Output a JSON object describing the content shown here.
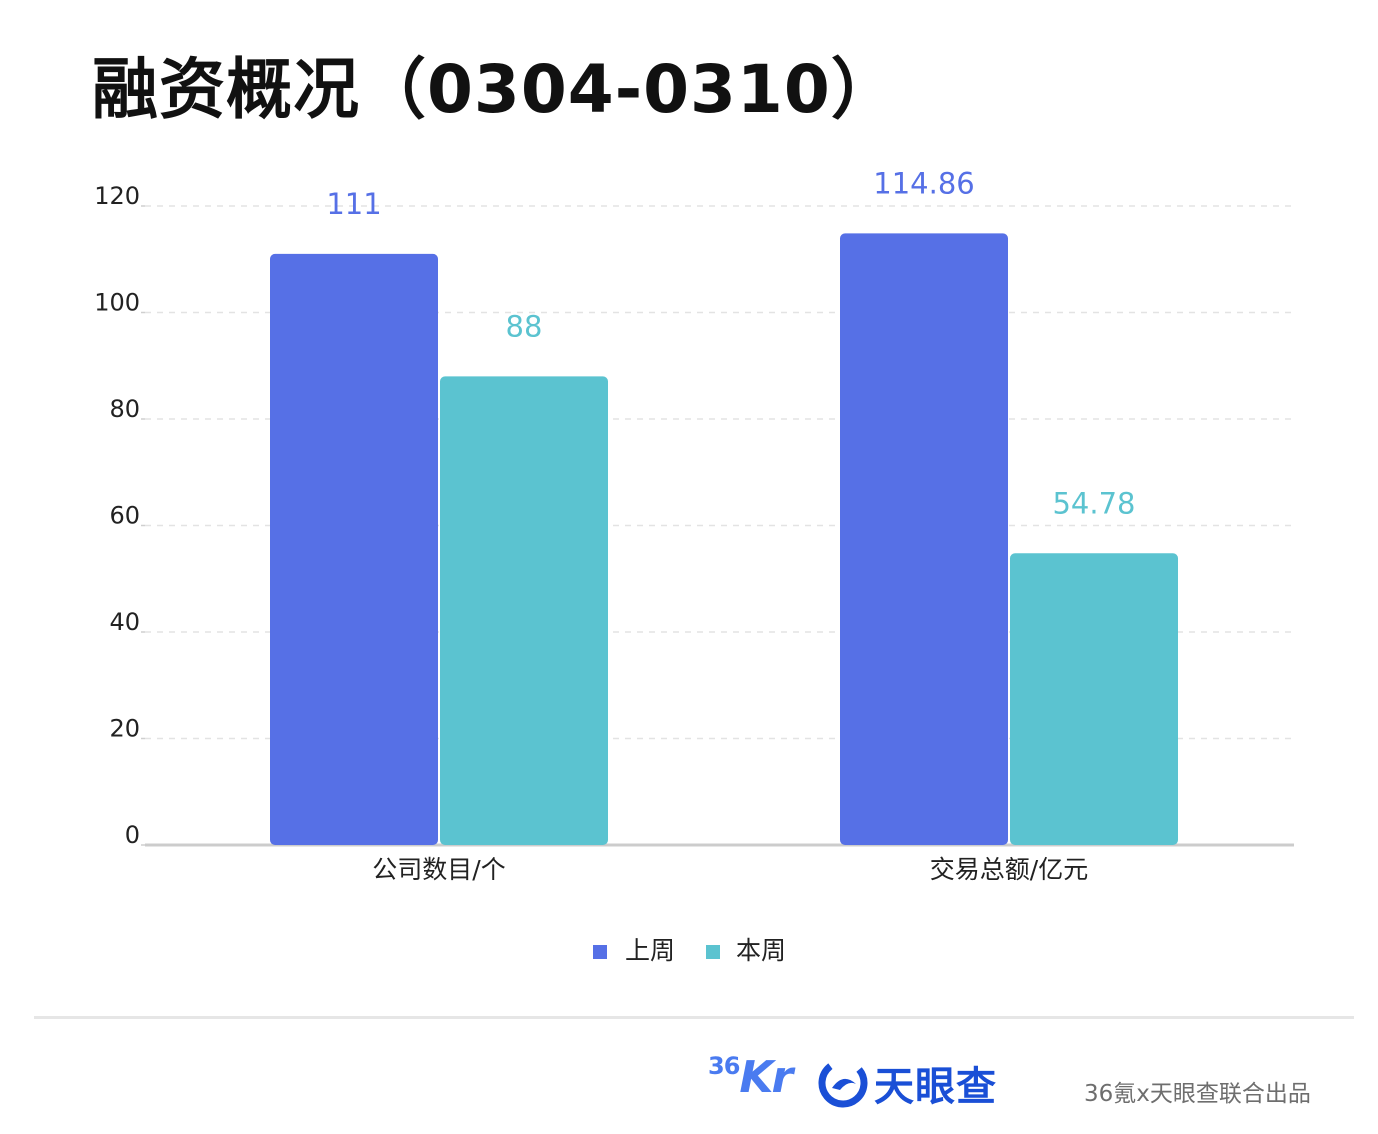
{
  "chart_data": {
    "type": "bar",
    "title": "融资概况（0304-0310）",
    "categories": [
      "公司数目/个",
      "交易总额/亿元"
    ],
    "series": [
      {
        "name": "上周",
        "values": [
          111,
          114.86
        ],
        "color": "#5670e6"
      },
      {
        "name": "本周",
        "values": [
          88,
          54.78
        ],
        "color": "#5bc3d0"
      }
    ],
    "data_labels": [
      [
        "111",
        "114.86"
      ],
      [
        "88",
        "54.78"
      ]
    ],
    "yticks": [
      "0",
      "20",
      "40",
      "60",
      "80",
      "100",
      "120"
    ],
    "ylim": [
      0,
      120
    ],
    "grid": true,
    "legend_position": "bottom-center"
  },
  "footer": {
    "logo_36kr_small": "36",
    "logo_36kr_big": "Kr",
    "logo_tianyancha": "天眼查",
    "credit": "36氪x天眼查联合出品"
  }
}
